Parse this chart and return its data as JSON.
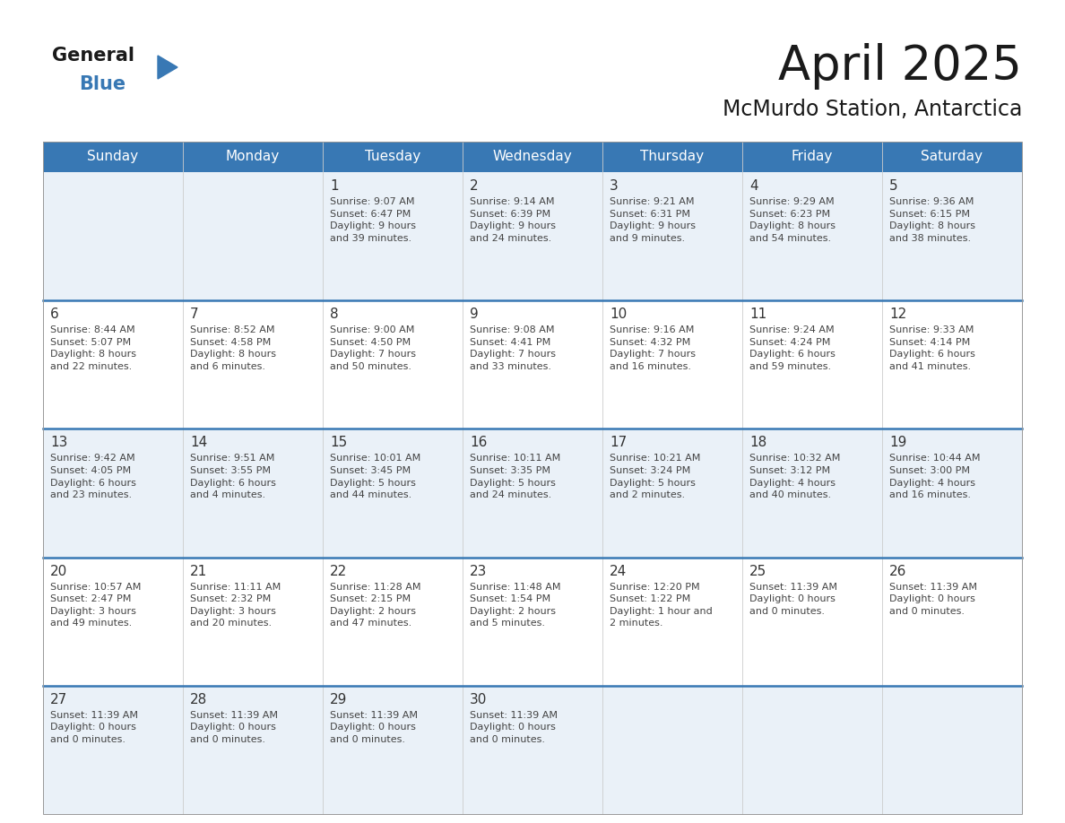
{
  "title": "April 2025",
  "subtitle": "McMurdo Station, Antarctica",
  "header_color": "#3878b4",
  "header_text_color": "#ffffff",
  "cell_bg_even": "#eaf1f8",
  "cell_bg_odd": "#ffffff",
  "day_number_color": "#333333",
  "text_color": "#444444",
  "divider_color": "#3878b4",
  "days_of_week": [
    "Sunday",
    "Monday",
    "Tuesday",
    "Wednesday",
    "Thursday",
    "Friday",
    "Saturday"
  ],
  "weeks": [
    [
      {
        "day": "",
        "text": ""
      },
      {
        "day": "",
        "text": ""
      },
      {
        "day": "1",
        "text": "Sunrise: 9:07 AM\nSunset: 6:47 PM\nDaylight: 9 hours\nand 39 minutes."
      },
      {
        "day": "2",
        "text": "Sunrise: 9:14 AM\nSunset: 6:39 PM\nDaylight: 9 hours\nand 24 minutes."
      },
      {
        "day": "3",
        "text": "Sunrise: 9:21 AM\nSunset: 6:31 PM\nDaylight: 9 hours\nand 9 minutes."
      },
      {
        "day": "4",
        "text": "Sunrise: 9:29 AM\nSunset: 6:23 PM\nDaylight: 8 hours\nand 54 minutes."
      },
      {
        "day": "5",
        "text": "Sunrise: 9:36 AM\nSunset: 6:15 PM\nDaylight: 8 hours\nand 38 minutes."
      }
    ],
    [
      {
        "day": "6",
        "text": "Sunrise: 8:44 AM\nSunset: 5:07 PM\nDaylight: 8 hours\nand 22 minutes."
      },
      {
        "day": "7",
        "text": "Sunrise: 8:52 AM\nSunset: 4:58 PM\nDaylight: 8 hours\nand 6 minutes."
      },
      {
        "day": "8",
        "text": "Sunrise: 9:00 AM\nSunset: 4:50 PM\nDaylight: 7 hours\nand 50 minutes."
      },
      {
        "day": "9",
        "text": "Sunrise: 9:08 AM\nSunset: 4:41 PM\nDaylight: 7 hours\nand 33 minutes."
      },
      {
        "day": "10",
        "text": "Sunrise: 9:16 AM\nSunset: 4:32 PM\nDaylight: 7 hours\nand 16 minutes."
      },
      {
        "day": "11",
        "text": "Sunrise: 9:24 AM\nSunset: 4:24 PM\nDaylight: 6 hours\nand 59 minutes."
      },
      {
        "day": "12",
        "text": "Sunrise: 9:33 AM\nSunset: 4:14 PM\nDaylight: 6 hours\nand 41 minutes."
      }
    ],
    [
      {
        "day": "13",
        "text": "Sunrise: 9:42 AM\nSunset: 4:05 PM\nDaylight: 6 hours\nand 23 minutes."
      },
      {
        "day": "14",
        "text": "Sunrise: 9:51 AM\nSunset: 3:55 PM\nDaylight: 6 hours\nand 4 minutes."
      },
      {
        "day": "15",
        "text": "Sunrise: 10:01 AM\nSunset: 3:45 PM\nDaylight: 5 hours\nand 44 minutes."
      },
      {
        "day": "16",
        "text": "Sunrise: 10:11 AM\nSunset: 3:35 PM\nDaylight: 5 hours\nand 24 minutes."
      },
      {
        "day": "17",
        "text": "Sunrise: 10:21 AM\nSunset: 3:24 PM\nDaylight: 5 hours\nand 2 minutes."
      },
      {
        "day": "18",
        "text": "Sunrise: 10:32 AM\nSunset: 3:12 PM\nDaylight: 4 hours\nand 40 minutes."
      },
      {
        "day": "19",
        "text": "Sunrise: 10:44 AM\nSunset: 3:00 PM\nDaylight: 4 hours\nand 16 minutes."
      }
    ],
    [
      {
        "day": "20",
        "text": "Sunrise: 10:57 AM\nSunset: 2:47 PM\nDaylight: 3 hours\nand 49 minutes."
      },
      {
        "day": "21",
        "text": "Sunrise: 11:11 AM\nSunset: 2:32 PM\nDaylight: 3 hours\nand 20 minutes."
      },
      {
        "day": "22",
        "text": "Sunrise: 11:28 AM\nSunset: 2:15 PM\nDaylight: 2 hours\nand 47 minutes."
      },
      {
        "day": "23",
        "text": "Sunrise: 11:48 AM\nSunset: 1:54 PM\nDaylight: 2 hours\nand 5 minutes."
      },
      {
        "day": "24",
        "text": "Sunrise: 12:20 PM\nSunset: 1:22 PM\nDaylight: 1 hour and\n2 minutes."
      },
      {
        "day": "25",
        "text": "Sunset: 11:39 AM\nDaylight: 0 hours\nand 0 minutes."
      },
      {
        "day": "26",
        "text": "Sunset: 11:39 AM\nDaylight: 0 hours\nand 0 minutes."
      }
    ],
    [
      {
        "day": "27",
        "text": "Sunset: 11:39 AM\nDaylight: 0 hours\nand 0 minutes."
      },
      {
        "day": "28",
        "text": "Sunset: 11:39 AM\nDaylight: 0 hours\nand 0 minutes."
      },
      {
        "day": "29",
        "text": "Sunset: 11:39 AM\nDaylight: 0 hours\nand 0 minutes."
      },
      {
        "day": "30",
        "text": "Sunset: 11:39 AM\nDaylight: 0 hours\nand 0 minutes."
      },
      {
        "day": "",
        "text": ""
      },
      {
        "day": "",
        "text": ""
      },
      {
        "day": "",
        "text": ""
      }
    ]
  ],
  "logo_general_color": "#1a1a1a",
  "logo_blue_color": "#3878b4",
  "logo_triangle_color": "#3878b4"
}
